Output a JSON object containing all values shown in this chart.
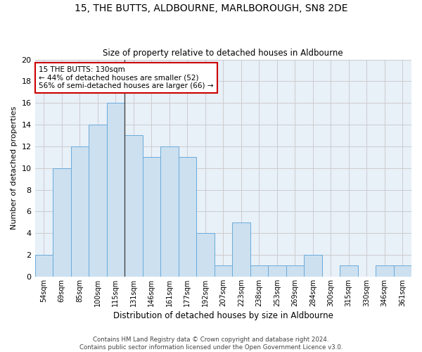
{
  "title": "15, THE BUTTS, ALDBOURNE, MARLBOROUGH, SN8 2DE",
  "subtitle": "Size of property relative to detached houses in Aldbourne",
  "xlabel": "Distribution of detached houses by size in Aldbourne",
  "ylabel": "Number of detached properties",
  "bar_labels": [
    "54sqm",
    "69sqm",
    "85sqm",
    "100sqm",
    "115sqm",
    "131sqm",
    "146sqm",
    "161sqm",
    "177sqm",
    "192sqm",
    "207sqm",
    "223sqm",
    "238sqm",
    "253sqm",
    "269sqm",
    "284sqm",
    "300sqm",
    "315sqm",
    "330sqm",
    "346sqm",
    "361sqm"
  ],
  "bar_values": [
    2,
    10,
    12,
    14,
    16,
    13,
    11,
    12,
    11,
    4,
    1,
    5,
    1,
    1,
    1,
    2,
    0,
    1,
    0,
    1,
    1
  ],
  "bar_color": "#cce0f0",
  "bar_edgecolor": "#6aabda",
  "highlight_index": 4,
  "highlight_line_color": "#444444",
  "annotation_text": "15 THE BUTTS: 130sqm\n← 44% of detached houses are smaller (52)\n56% of semi-detached houses are larger (66) →",
  "annotation_box_color": "#ffffff",
  "annotation_box_edgecolor": "#cc0000",
  "ylim": [
    0,
    20
  ],
  "yticks": [
    0,
    2,
    4,
    6,
    8,
    10,
    12,
    14,
    16,
    18,
    20
  ],
  "footer": "Contains HM Land Registry data © Crown copyright and database right 2024.\nContains public sector information licensed under the Open Government Licence v3.0.",
  "bg_color": "#ffffff",
  "plot_bg_color": "#e8f0f8",
  "grid_color": "#c8c8c8"
}
